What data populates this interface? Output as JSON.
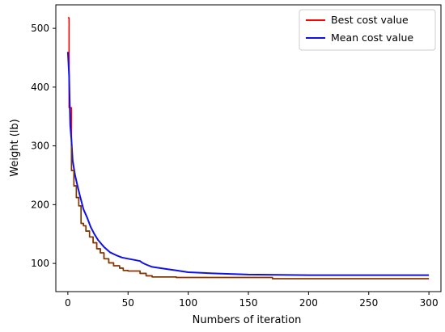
{
  "chart_data": {
    "type": "line",
    "xlabel": "Numbers of iteration",
    "ylabel": "Weight (lb)",
    "xlim": [
      -10,
      310
    ],
    "ylim": [
      52,
      540
    ],
    "xticks": [
      0,
      50,
      100,
      150,
      200,
      250,
      300
    ],
    "yticks": [
      100,
      200,
      300,
      400,
      500
    ],
    "grid": false,
    "legend_position": "top-right",
    "series": [
      {
        "name": "Best cost value",
        "color": "#ff0000",
        "x": [
          0,
          1,
          1,
          3,
          3,
          5,
          5,
          7,
          7,
          9,
          9,
          11,
          11,
          13,
          13,
          15,
          15,
          18,
          18,
          21,
          21,
          24,
          24,
          27,
          27,
          30,
          30,
          34,
          34,
          38,
          38,
          43,
          43,
          46,
          46,
          50,
          50,
          60,
          60,
          65,
          65,
          70,
          70,
          90,
          90,
          170,
          170,
          300
        ],
        "y": [
          518,
          518,
          365,
          365,
          258,
          258,
          232,
          232,
          212,
          212,
          198,
          198,
          168,
          168,
          164,
          164,
          155,
          155,
          145,
          145,
          135,
          135,
          125,
          125,
          118,
          118,
          108,
          108,
          101,
          101,
          96,
          96,
          92,
          92,
          88,
          88,
          87,
          87,
          83,
          83,
          79,
          79,
          77,
          77,
          76,
          76,
          74,
          74
        ]
      },
      {
        "name": "Mean cost value",
        "color": "#1010e8",
        "x": [
          0,
          1,
          2,
          3,
          4,
          6,
          8,
          10,
          13,
          16,
          19,
          22,
          25,
          30,
          35,
          40,
          45,
          50,
          55,
          60,
          62,
          65,
          70,
          80,
          90,
          100,
          120,
          150,
          200,
          250,
          300
        ],
        "y": [
          460,
          420,
          335,
          310,
          275,
          250,
          232,
          215,
          192,
          178,
          162,
          150,
          140,
          128,
          119,
          114,
          110,
          108,
          106,
          104,
          101,
          98,
          94,
          91,
          88,
          85,
          83,
          81,
          80,
          80,
          80
        ]
      },
      {
        "name": "",
        "color": "#7a3a00",
        "x": [
          3,
          3,
          5,
          5,
          7,
          7,
          9,
          9,
          11,
          11,
          13,
          13,
          15,
          15,
          18,
          18,
          21,
          21,
          24,
          24,
          27,
          27,
          30,
          30,
          34,
          34,
          38,
          38,
          43,
          43,
          46,
          46,
          50,
          50,
          60,
          60,
          65,
          65,
          70,
          70,
          90,
          90,
          170,
          170,
          300
        ],
        "y": [
          300,
          258,
          258,
          232,
          232,
          212,
          212,
          198,
          198,
          168,
          168,
          164,
          164,
          155,
          155,
          145,
          145,
          135,
          135,
          125,
          125,
          118,
          118,
          108,
          108,
          101,
          101,
          96,
          96,
          92,
          92,
          88,
          88,
          87,
          87,
          83,
          83,
          79,
          79,
          77,
          77,
          76,
          76,
          74,
          74
        ]
      }
    ]
  }
}
